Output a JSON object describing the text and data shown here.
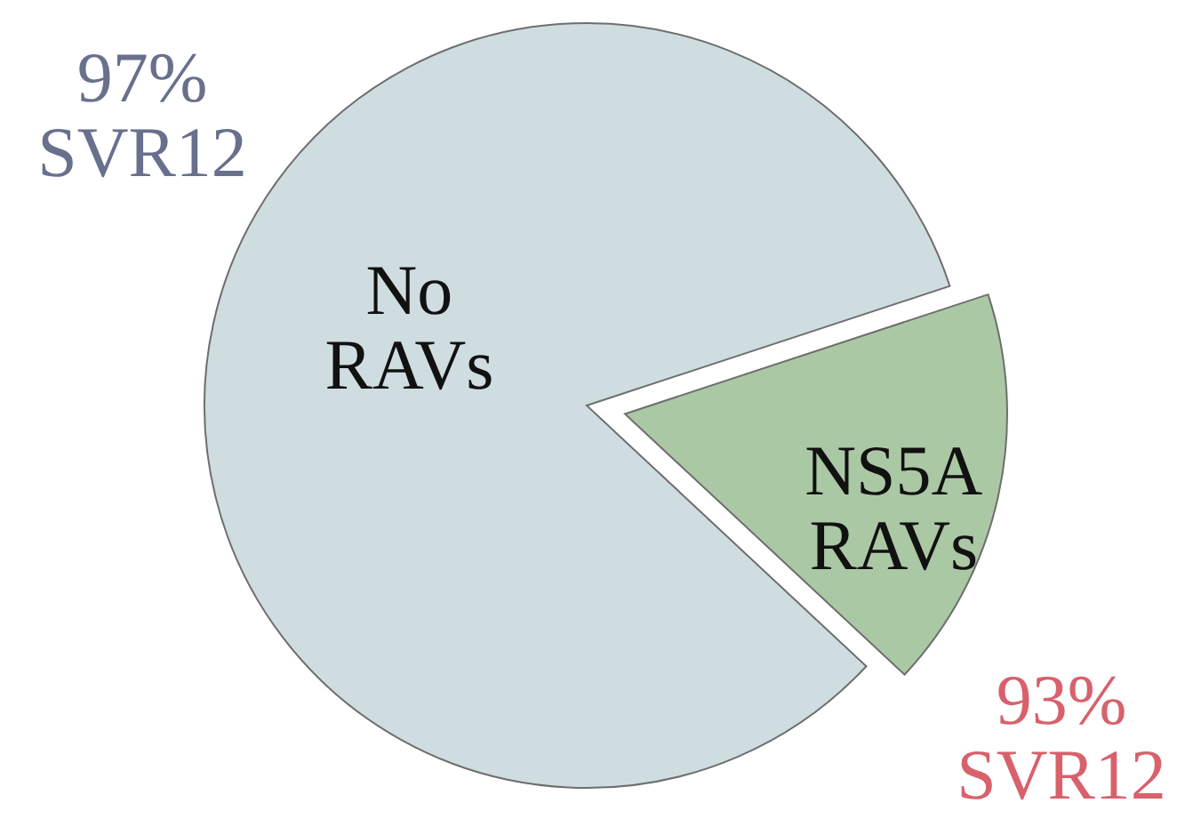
{
  "chart_data": {
    "type": "pie",
    "categories": [
      "No RAVs",
      "NS5A RAVs"
    ],
    "values": [
      83,
      17
    ],
    "colors": [
      "#cfdde0",
      "#abc8a5"
    ],
    "annotations": [
      "97% SVR12",
      "93% SVR12"
    ]
  }
}
